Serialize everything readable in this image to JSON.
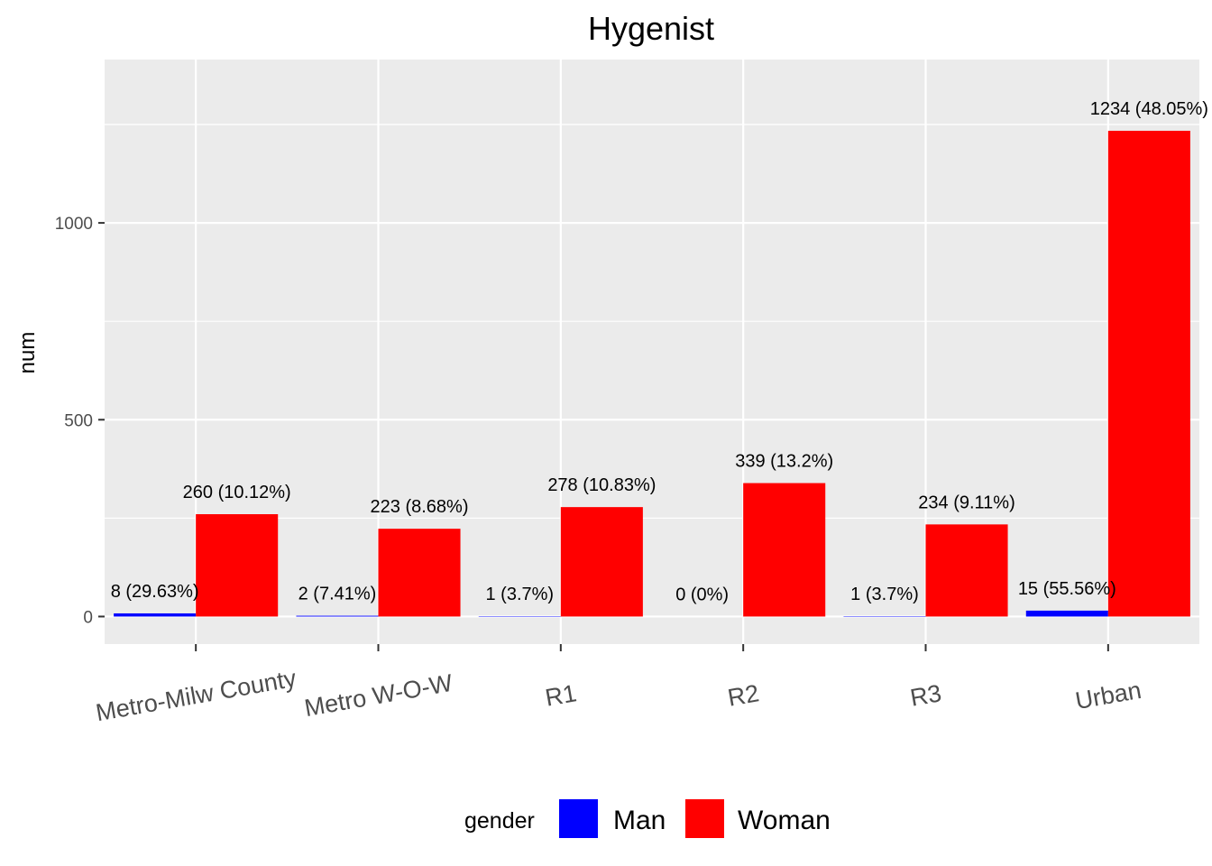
{
  "chart_data": {
    "type": "bar",
    "title": "Hygenist",
    "xlabel": "",
    "ylabel": "num",
    "ylim": [
      -70,
      1415
    ],
    "yticks": [
      0,
      500,
      1000
    ],
    "grid": true,
    "legend_position": "bottom",
    "legend_title": "gender",
    "categories": [
      "Metro-Milw County",
      "Metro W-O-W",
      "R1",
      "R2",
      "R3",
      "Urban"
    ],
    "series": [
      {
        "name": "Man",
        "color": "#0000ff",
        "values": [
          8,
          2,
          1,
          0,
          1,
          15
        ],
        "labels": [
          "8 (29.63%)",
          "2 (7.41%)",
          "1 (3.7%)",
          "0 (0%)",
          "1 (3.7%)",
          "15 (55.56%)"
        ]
      },
      {
        "name": "Woman",
        "color": "#ff0000",
        "values": [
          260,
          223,
          278,
          339,
          234,
          1234
        ],
        "labels": [
          "260 (10.12%)",
          "223 (8.68%)",
          "278 (10.83%)",
          "339 (13.2%)",
          "234 (9.11%)",
          "1234 (48.05%)"
        ]
      }
    ],
    "panel_background": "#ebebeb",
    "grid_color": "#ffffff"
  }
}
